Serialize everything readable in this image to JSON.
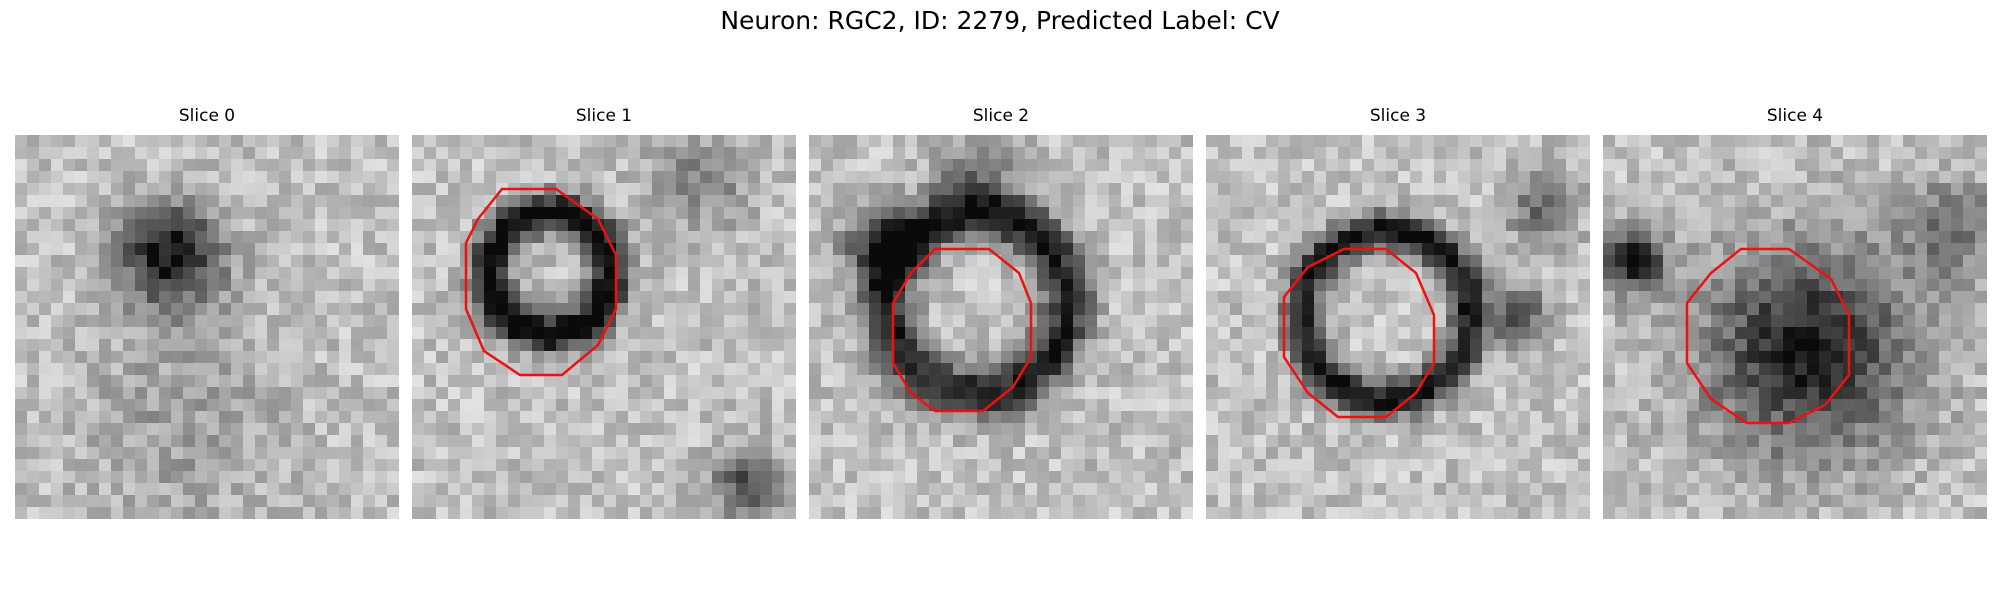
{
  "figure": {
    "title": "Neuron: RGC2, ID: 2279, Predicted Label: CV"
  },
  "panels": [
    {
      "title": "Slice 0",
      "has_contour": false,
      "description_icon": "grayscale-microscopy-slice"
    },
    {
      "title": "Slice 1",
      "has_contour": true,
      "description_icon": "grayscale-microscopy-slice"
    },
    {
      "title": "Slice 2",
      "has_contour": true,
      "description_icon": "grayscale-microscopy-slice"
    },
    {
      "title": "Slice 3",
      "has_contour": true,
      "description_icon": "grayscale-microscopy-slice"
    },
    {
      "title": "Slice 4",
      "has_contour": true,
      "description_icon": "grayscale-microscopy-slice"
    }
  ],
  "colors": {
    "contour": "#ee1111",
    "background": "#ffffff"
  }
}
